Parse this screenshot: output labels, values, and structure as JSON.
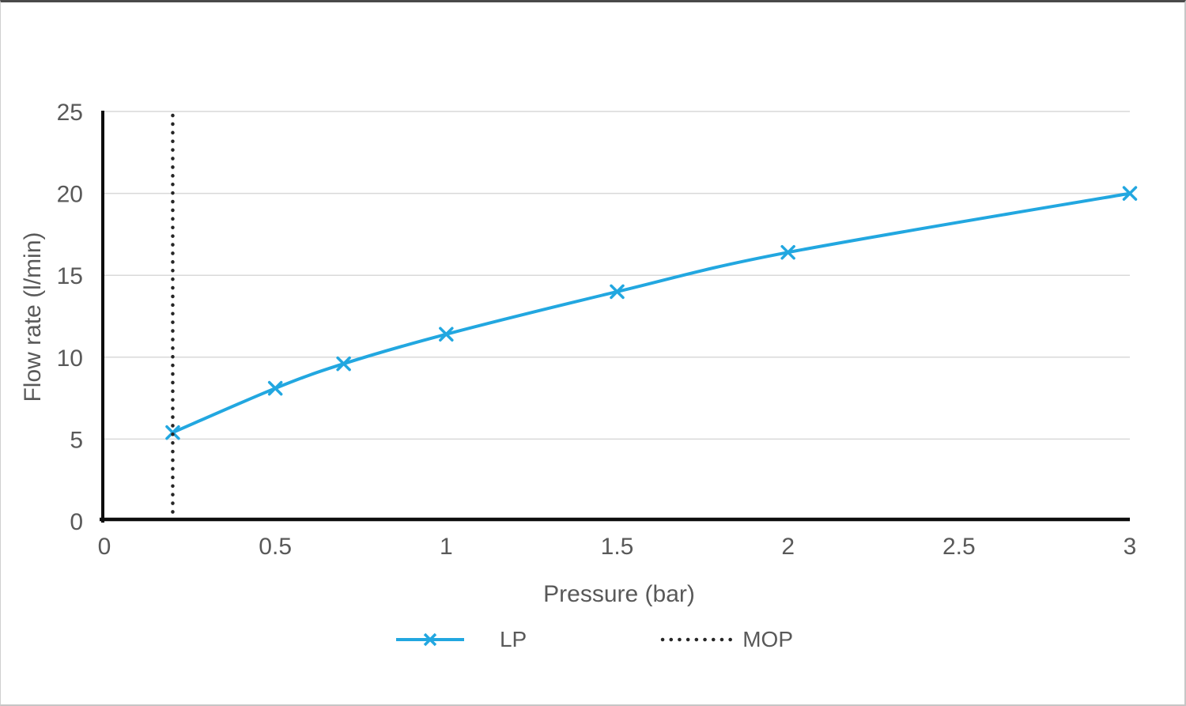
{
  "chart_data": {
    "type": "line",
    "title": "",
    "xlabel": "Pressure (bar)",
    "ylabel": "Flow rate (l/min)",
    "xlim": [
      0,
      3
    ],
    "ylim": [
      0,
      25
    ],
    "x_ticks": [
      0,
      0.5,
      1,
      1.5,
      2,
      2.5,
      3
    ],
    "x_tick_labels": [
      "0",
      "0.5",
      "1",
      "1.5",
      "2",
      "2.5",
      "3"
    ],
    "y_ticks": [
      0,
      5,
      10,
      15,
      20,
      25
    ],
    "y_tick_labels": [
      "0",
      "5",
      "10",
      "15",
      "20",
      "25"
    ],
    "grid": "horizontal",
    "legend_position": "bottom",
    "colors": {
      "lp_line": "#22a7e0",
      "mop_line": "#262626",
      "gridline": "#d9d9d9",
      "axis": "#0d0d0d",
      "text": "#595959"
    },
    "series": [
      {
        "name": "LP",
        "kind": "line",
        "marker": "x",
        "smooth": true,
        "color": "#22a7e0",
        "points": [
          [
            0.2,
            5.4
          ],
          [
            0.5,
            8.1
          ],
          [
            0.7,
            9.6
          ],
          [
            1.0,
            11.4
          ],
          [
            1.5,
            14.0
          ],
          [
            2.0,
            16.4
          ],
          [
            3.0,
            20.0
          ]
        ]
      },
      {
        "name": "MOP",
        "kind": "vline",
        "style": "dotted",
        "color": "#262626",
        "x": 0.2
      }
    ]
  }
}
